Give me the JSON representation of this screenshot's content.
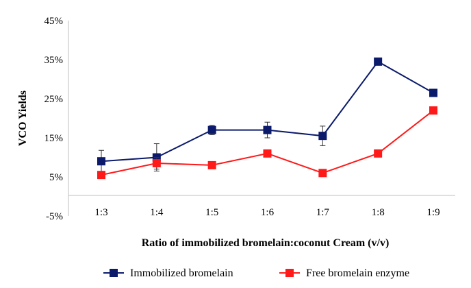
{
  "chart_data": {
    "type": "line",
    "title": "",
    "xlabel": "Ratio of immobilized bromelain:coconut Cream (v/v)",
    "ylabel": "VCO Yields",
    "categories": [
      "1:3",
      "1:4",
      "1:5",
      "1:6",
      "1:7",
      "1:8",
      "1:9"
    ],
    "ylim": [
      -5,
      45
    ],
    "yticks": [
      "-5%",
      "5%",
      "15%",
      "25%",
      "35%",
      "45%"
    ],
    "ytick_values": [
      -5,
      5,
      15,
      25,
      35,
      45
    ],
    "grid": false,
    "legend_position": "bottom",
    "series": [
      {
        "name": "Immobilized bromelain",
        "color": "#0b1a6b",
        "values": [
          9.0,
          10.0,
          17.0,
          17.0,
          15.5,
          34.5,
          26.5
        ],
        "errors": [
          2.8,
          3.5,
          1.2,
          2.0,
          2.5,
          0,
          0
        ]
      },
      {
        "name": "Free bromelain enzyme",
        "color": "#ff1a1a",
        "values": [
          5.5,
          8.5,
          8.0,
          11.0,
          6.0,
          11.0,
          22.0
        ],
        "errors": [
          0,
          1.5,
          0,
          0,
          0,
          0,
          0
        ]
      }
    ]
  }
}
